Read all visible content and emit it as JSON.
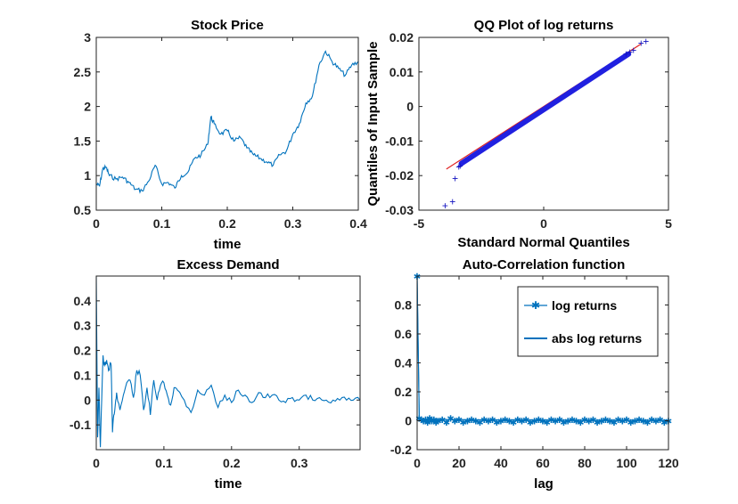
{
  "chart_data": [
    {
      "id": "stock",
      "type": "line",
      "title": "Stock Price",
      "xlabel": "time",
      "ylabel": "",
      "xlim": [
        0,
        0.4
      ],
      "ylim": [
        0.5,
        3
      ],
      "xticks": [
        0,
        0.1,
        0.2,
        0.3,
        0.4
      ],
      "xtick_labels": [
        "0",
        "0.1",
        "0.2",
        "0.3",
        "0.4"
      ],
      "yticks": [
        0.5,
        1,
        1.5,
        2,
        2.5,
        3
      ],
      "ytick_labels": [
        "0.5",
        "1",
        "1.5",
        "2",
        "2.5",
        "3"
      ],
      "series": [
        {
          "name": "price",
          "color": "#0072BD",
          "x": [
            0,
            0.005,
            0.01,
            0.015,
            0.02,
            0.03,
            0.04,
            0.05,
            0.06,
            0.07,
            0.08,
            0.09,
            0.1,
            0.11,
            0.12,
            0.13,
            0.14,
            0.15,
            0.16,
            0.17,
            0.175,
            0.18,
            0.19,
            0.2,
            0.21,
            0.22,
            0.23,
            0.24,
            0.25,
            0.26,
            0.27,
            0.28,
            0.29,
            0.3,
            0.31,
            0.32,
            0.33,
            0.34,
            0.35,
            0.36,
            0.37,
            0.38,
            0.39,
            0.4
          ],
          "y": [
            0.88,
            0.85,
            1.1,
            1.12,
            1.0,
            0.95,
            0.98,
            0.9,
            0.8,
            0.78,
            0.92,
            1.15,
            0.88,
            0.9,
            0.82,
            1.0,
            1.05,
            1.25,
            1.3,
            1.45,
            1.85,
            1.75,
            1.6,
            1.65,
            1.5,
            1.55,
            1.4,
            1.3,
            1.25,
            1.2,
            1.15,
            1.3,
            1.35,
            1.6,
            1.75,
            2.05,
            2.15,
            2.6,
            2.8,
            2.65,
            2.55,
            2.45,
            2.6,
            2.65
          ]
        }
      ]
    },
    {
      "id": "qq",
      "type": "scatter",
      "title": "QQ Plot of log returns",
      "xlabel": "Standard Normal Quantiles",
      "ylabel": "Quantiles of Input Sample",
      "xlim": [
        -5,
        5
      ],
      "ylim": [
        -0.03,
        0.02
      ],
      "xticks": [
        -5,
        0,
        5
      ],
      "xtick_labels": [
        "-5",
        "0",
        "5"
      ],
      "yticks": [
        -0.03,
        -0.02,
        -0.01,
        0,
        0.01,
        0.02
      ],
      "ytick_labels": [
        "-0.03",
        "-0.02",
        "-0.01",
        "0",
        "0.01",
        "0.02"
      ],
      "reference_line": {
        "x": [
          -3.9,
          3.9
        ],
        "y": [
          -0.0181,
          0.0181
        ],
        "color": "#E02020"
      },
      "dense_band": {
        "x": [
          -3.3,
          3.4
        ],
        "y": [
          -0.0165,
          0.0152
        ],
        "color": "#2020E0"
      },
      "outliers": {
        "x": [
          -3.95,
          -3.65,
          -3.55,
          -3.4,
          -3.35,
          3.3,
          3.45,
          3.6,
          3.9,
          4.1
        ],
        "y": [
          -0.0287,
          -0.0275,
          -0.0208,
          -0.0175,
          -0.0172,
          0.0152,
          0.0157,
          0.0162,
          0.0183,
          0.0188
        ],
        "color": "#1010C0"
      }
    },
    {
      "id": "demand",
      "type": "line",
      "title": "Excess Demand",
      "xlabel": "time",
      "ylabel": "",
      "xlim": [
        0,
        0.39
      ],
      "ylim": [
        -0.2,
        0.5
      ],
      "xticks": [
        0,
        0.1,
        0.2,
        0.3
      ],
      "xtick_labels": [
        "0",
        "0.1",
        "0.2",
        "0.3"
      ],
      "yticks": [
        -0.1,
        0,
        0.1,
        0.2,
        0.3,
        0.4
      ],
      "ytick_labels": [
        "-0.1",
        "0",
        "0.1",
        "0.2",
        "0.3",
        "0.4"
      ],
      "series": [
        {
          "name": "excess demand",
          "color": "#0072BD",
          "x": [
            0,
            0.002,
            0.004,
            0.006,
            0.008,
            0.01,
            0.012,
            0.014,
            0.016,
            0.018,
            0.02,
            0.022,
            0.024,
            0.026,
            0.028,
            0.03,
            0.035,
            0.04,
            0.045,
            0.05,
            0.055,
            0.06,
            0.065,
            0.07,
            0.075,
            0.08,
            0.085,
            0.09,
            0.095,
            0.1,
            0.105,
            0.11,
            0.115,
            0.12,
            0.13,
            0.14,
            0.15,
            0.16,
            0.17,
            0.18,
            0.19,
            0.2,
            0.21,
            0.22,
            0.23,
            0.24,
            0.25,
            0.26,
            0.27,
            0.28,
            0.29,
            0.3,
            0.31,
            0.32,
            0.33,
            0.34,
            0.35,
            0.36,
            0.37,
            0.38,
            0.39
          ],
          "y": [
            0.5,
            -0.15,
            0.05,
            -0.19,
            0.0,
            0.18,
            0.14,
            0.15,
            0.15,
            0.12,
            0.14,
            0.14,
            -0.13,
            -0.06,
            -0.02,
            0.03,
            -0.04,
            0.02,
            0.07,
            0.08,
            0.01,
            0.12,
            0.1,
            -0.04,
            0.05,
            -0.06,
            0.08,
            0.0,
            0.06,
            0.07,
            0.02,
            -0.02,
            0.05,
            0.04,
            0.0,
            -0.05,
            0.04,
            0.02,
            0.06,
            -0.03,
            0.02,
            -0.01,
            0.04,
            0.02,
            -0.01,
            0.03,
            0.01,
            0.02,
            0.0,
            -0.01,
            0.01,
            0.0,
            0.02,
            0.0,
            0.01,
            0.0,
            0.0,
            0.0,
            0.0,
            0.0,
            0.0
          ]
        }
      ]
    },
    {
      "id": "acf",
      "type": "line",
      "title": "Auto-Correlation function",
      "xlabel": "lag",
      "ylabel": "",
      "xlim": [
        0,
        120
      ],
      "ylim": [
        -0.2,
        1
      ],
      "xticks": [
        0,
        20,
        40,
        60,
        80,
        100,
        120
      ],
      "xtick_labels": [
        "0",
        "20",
        "40",
        "60",
        "80",
        "100",
        "120"
      ],
      "yticks": [
        -0.2,
        0,
        0.2,
        0.4,
        0.6,
        0.8
      ],
      "ytick_labels": [
        "-0.2",
        "0",
        "0.2",
        "0.4",
        "0.6",
        "0.8"
      ],
      "legend": {
        "position": "top-right",
        "entries": [
          "log returns",
          "abs log returns"
        ]
      },
      "series": [
        {
          "name": "log returns",
          "color": "#0072BD",
          "marker": "asterisk",
          "x": [
            0,
            1,
            2,
            3,
            4,
            5,
            6,
            7,
            8,
            9,
            10,
            12,
            14,
            16,
            18,
            20,
            22,
            24,
            26,
            28,
            30,
            32,
            34,
            36,
            38,
            40,
            42,
            44,
            46,
            48,
            50,
            52,
            54,
            56,
            58,
            60,
            62,
            64,
            66,
            68,
            70,
            72,
            74,
            76,
            78,
            80,
            82,
            84,
            86,
            88,
            90,
            92,
            94,
            96,
            98,
            100,
            102,
            104,
            106,
            108,
            110,
            112,
            114,
            116,
            118,
            120
          ],
          "y": [
            1.0,
            0.02,
            0.01,
            0.0,
            0.01,
            -0.01,
            0.02,
            0.0,
            0.01,
            -0.01,
            0.0,
            0.01,
            -0.01,
            0.02,
            0.0,
            0.01,
            -0.01,
            0.0,
            0.01,
            0.0,
            -0.01,
            0.01,
            0.0,
            0.01,
            -0.01,
            0.0,
            0.01,
            0.0,
            -0.01,
            0.01,
            0.0,
            0.01,
            -0.01,
            0.0,
            0.01,
            0.0,
            -0.01,
            0.01,
            0.0,
            0.01,
            -0.01,
            0.0,
            0.01,
            0.0,
            -0.01,
            0.01,
            0.0,
            0.01,
            -0.01,
            0.0,
            0.01,
            0.0,
            -0.01,
            0.01,
            0.0,
            0.01,
            -0.01,
            0.0,
            0.01,
            0.0,
            -0.01,
            0.01,
            0.0,
            0.01,
            -0.01,
            0.0
          ]
        },
        {
          "name": "abs log returns",
          "color": "#0072BD",
          "marker": "none",
          "x": [
            0,
            1,
            2,
            4,
            8,
            16,
            32,
            60,
            90,
            120
          ],
          "y": [
            1.0,
            0.02,
            0.015,
            0.01,
            0.01,
            0.008,
            0.006,
            0.005,
            0.004,
            0.004
          ]
        }
      ]
    }
  ]
}
